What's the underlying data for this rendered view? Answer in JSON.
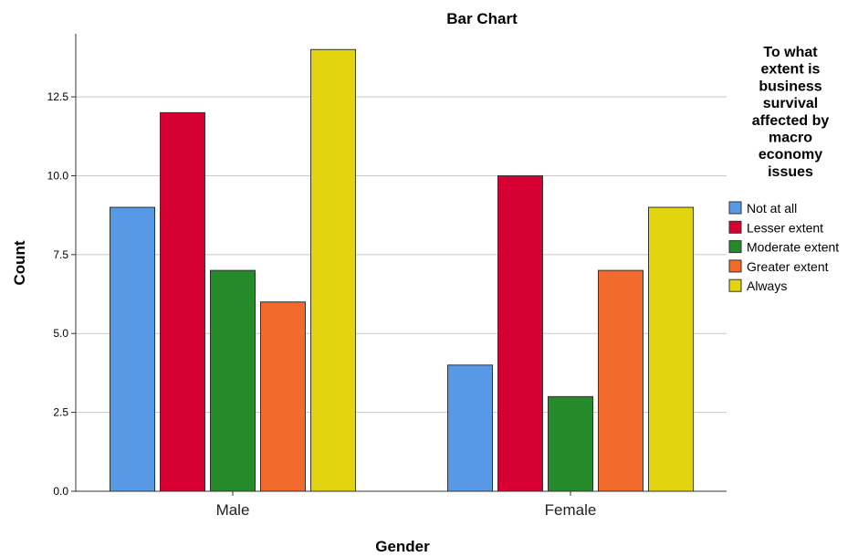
{
  "chart_data": {
    "type": "bar",
    "title": "Bar Chart",
    "xlabel": "Gender",
    "ylabel": "Count",
    "categories": [
      "Male",
      "Female"
    ],
    "ylim": [
      0,
      14.5
    ],
    "yticks": [
      "0.0",
      "2.5",
      "5.0",
      "7.5",
      "10.0",
      "12.5"
    ],
    "ytick_values": [
      0,
      2.5,
      5,
      7.5,
      10,
      12.5
    ],
    "grid": true,
    "legend": {
      "placement": "right",
      "title_lines": [
        "To what",
        "extent is",
        "business",
        "survival",
        "affected by",
        "macro",
        "economy",
        "issues"
      ]
    },
    "series": [
      {
        "name": "Not at all",
        "color": "#5899e5",
        "values": [
          9,
          4
        ]
      },
      {
        "name": "Lesser extent",
        "color": "#d70033",
        "values": [
          12,
          10
        ]
      },
      {
        "name": "Moderate extent",
        "color": "#258a2a",
        "values": [
          7,
          3
        ]
      },
      {
        "name": "Greater extent",
        "color": "#f26a2c",
        "values": [
          6,
          7
        ]
      },
      {
        "name": "Always",
        "color": "#e2d510",
        "values": [
          14,
          9
        ]
      }
    ]
  }
}
